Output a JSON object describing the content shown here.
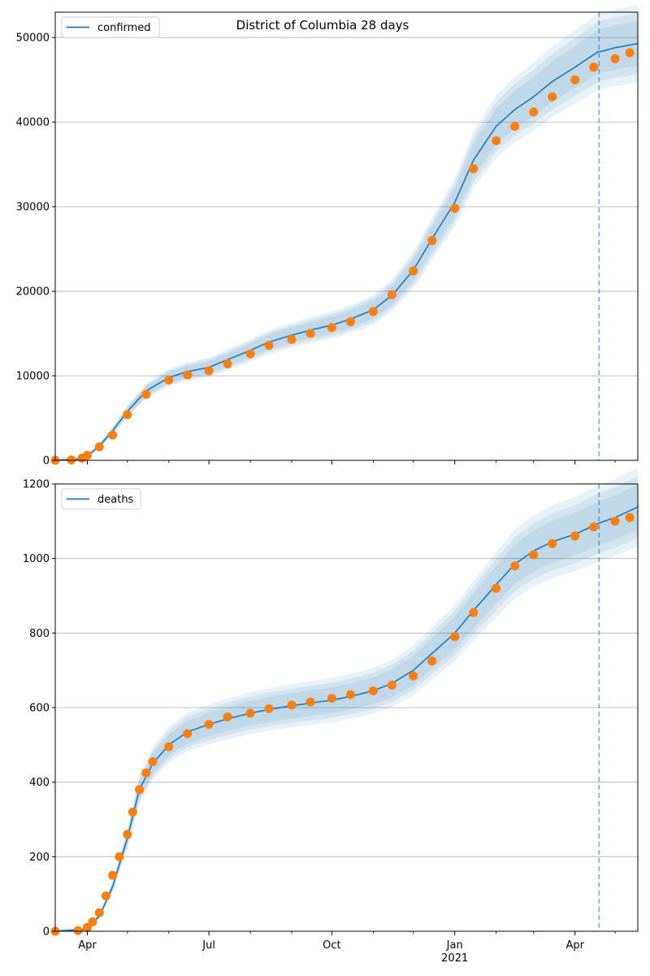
{
  "figure": {
    "title": "District of Columbia 28 days",
    "forecast_start": "2021-04-19"
  },
  "colors": {
    "model": "#1f77b4",
    "observed": "#ff7f0e",
    "band": "#1f77b4",
    "grid": "#b0b0b0",
    "marker_line": "#1f77b4"
  },
  "x_axis": {
    "range": [
      "2020-03-08",
      "2021-05-18"
    ],
    "ticks": [
      {
        "date": "2020-04-01",
        "label": "Apr",
        "sublabel": ""
      },
      {
        "date": "2020-07-01",
        "label": "Jul",
        "sublabel": ""
      },
      {
        "date": "2020-10-01",
        "label": "Oct",
        "sublabel": ""
      },
      {
        "date": "2021-01-01",
        "label": "Jan",
        "sublabel": "2021"
      },
      {
        "date": "2021-04-01",
        "label": "Apr",
        "sublabel": ""
      }
    ]
  },
  "chart_data": [
    {
      "type": "line",
      "legend": "confirmed",
      "legend_position": "top-left",
      "grid": true,
      "ylim": [
        0,
        53000
      ],
      "yticks": [
        0,
        10000,
        20000,
        30000,
        40000,
        50000
      ],
      "series": [
        {
          "name": "confirmed",
          "kind": "model",
          "points": [
            [
              "2020-03-08",
              0
            ],
            [
              "2020-03-25",
              150
            ],
            [
              "2020-04-01",
              500
            ],
            [
              "2020-04-10",
              1700
            ],
            [
              "2020-04-20",
              3500
            ],
            [
              "2020-05-01",
              5800
            ],
            [
              "2020-05-15",
              8200
            ],
            [
              "2020-06-01",
              9800
            ],
            [
              "2020-06-15",
              10500
            ],
            [
              "2020-07-01",
              11000
            ],
            [
              "2020-07-15",
              11900
            ],
            [
              "2020-08-01",
              13000
            ],
            [
              "2020-08-15",
              14000
            ],
            [
              "2020-09-01",
              14800
            ],
            [
              "2020-09-15",
              15400
            ],
            [
              "2020-10-01",
              16000
            ],
            [
              "2020-10-15",
              16700
            ],
            [
              "2020-11-01",
              17800
            ],
            [
              "2020-11-15",
              19500
            ],
            [
              "2020-12-01",
              22500
            ],
            [
              "2020-12-15",
              26200
            ],
            [
              "2021-01-01",
              30500
            ],
            [
              "2021-01-15",
              35500
            ],
            [
              "2021-02-01",
              39500
            ],
            [
              "2021-02-15",
              41500
            ],
            [
              "2021-03-01",
              43000
            ],
            [
              "2021-03-15",
              44800
            ],
            [
              "2021-04-01",
              46500
            ],
            [
              "2021-04-19",
              48400
            ]
          ]
        },
        {
          "name": "",
          "kind": "forecast",
          "points": [
            [
              "2021-04-19",
              48300
            ],
            [
              "2021-05-01",
              48800
            ],
            [
              "2021-05-18",
              49300
            ]
          ]
        },
        {
          "name": "",
          "kind": "observed",
          "points": [
            [
              "2020-03-08",
              0
            ],
            [
              "2020-03-20",
              50
            ],
            [
              "2020-03-28",
              250
            ],
            [
              "2020-04-01",
              600
            ],
            [
              "2020-04-10",
              1600
            ],
            [
              "2020-04-20",
              3000
            ],
            [
              "2020-05-01",
              5400
            ],
            [
              "2020-05-15",
              7800
            ],
            [
              "2020-06-01",
              9500
            ],
            [
              "2020-06-15",
              10100
            ],
            [
              "2020-07-01",
              10600
            ],
            [
              "2020-07-15",
              11400
            ],
            [
              "2020-08-01",
              12600
            ],
            [
              "2020-08-15",
              13600
            ],
            [
              "2020-09-01",
              14300
            ],
            [
              "2020-09-15",
              15000
            ],
            [
              "2020-10-01",
              15700
            ],
            [
              "2020-10-15",
              16400
            ],
            [
              "2020-11-01",
              17600
            ],
            [
              "2020-11-15",
              19600
            ],
            [
              "2020-12-01",
              22400
            ],
            [
              "2020-12-15",
              26000
            ],
            [
              "2021-01-01",
              29800
            ],
            [
              "2021-01-15",
              34500
            ],
            [
              "2021-02-01",
              37800
            ],
            [
              "2021-02-15",
              39500
            ],
            [
              "2021-03-01",
              41200
            ],
            [
              "2021-03-15",
              43000
            ],
            [
              "2021-04-01",
              45000
            ],
            [
              "2021-04-15",
              46500
            ],
            [
              "2021-05-01",
              47500
            ],
            [
              "2021-05-12",
              48200
            ]
          ]
        }
      ]
    },
    {
      "type": "line",
      "legend": "deaths",
      "legend_position": "top-left",
      "grid": true,
      "ylim": [
        0,
        1200
      ],
      "yticks": [
        0,
        200,
        400,
        600,
        800,
        1000,
        1200
      ],
      "series": [
        {
          "name": "deaths",
          "kind": "model",
          "points": [
            [
              "2020-03-08",
              0
            ],
            [
              "2020-03-30",
              5
            ],
            [
              "2020-04-10",
              40
            ],
            [
              "2020-04-20",
              120
            ],
            [
              "2020-05-01",
              250
            ],
            [
              "2020-05-10",
              380
            ],
            [
              "2020-05-20",
              450
            ],
            [
              "2020-06-01",
              500
            ],
            [
              "2020-06-15",
              535
            ],
            [
              "2020-07-01",
              555
            ],
            [
              "2020-07-15",
              570
            ],
            [
              "2020-08-01",
              585
            ],
            [
              "2020-08-15",
              595
            ],
            [
              "2020-09-01",
              605
            ],
            [
              "2020-09-15",
              612
            ],
            [
              "2020-10-01",
              620
            ],
            [
              "2020-10-15",
              630
            ],
            [
              "2020-11-01",
              645
            ],
            [
              "2020-11-15",
              665
            ],
            [
              "2020-12-01",
              700
            ],
            [
              "2020-12-15",
              745
            ],
            [
              "2021-01-01",
              800
            ],
            [
              "2021-01-15",
              860
            ],
            [
              "2021-02-01",
              930
            ],
            [
              "2021-02-15",
              985
            ],
            [
              "2021-03-01",
              1020
            ],
            [
              "2021-03-15",
              1045
            ],
            [
              "2021-04-01",
              1065
            ],
            [
              "2021-04-19",
              1095
            ]
          ]
        },
        {
          "name": "",
          "kind": "forecast",
          "points": [
            [
              "2021-04-19",
              1095
            ],
            [
              "2021-05-01",
              1110
            ],
            [
              "2021-05-18",
              1138
            ]
          ]
        },
        {
          "name": "",
          "kind": "observed",
          "points": [
            [
              "2020-03-08",
              0
            ],
            [
              "2020-03-25",
              2
            ],
            [
              "2020-04-01",
              10
            ],
            [
              "2020-04-05",
              25
            ],
            [
              "2020-04-10",
              50
            ],
            [
              "2020-04-15",
              95
            ],
            [
              "2020-04-20",
              150
            ],
            [
              "2020-04-25",
              200
            ],
            [
              "2020-05-01",
              260
            ],
            [
              "2020-05-05",
              320
            ],
            [
              "2020-05-10",
              380
            ],
            [
              "2020-05-15",
              425
            ],
            [
              "2020-05-20",
              455
            ],
            [
              "2020-06-01",
              495
            ],
            [
              "2020-06-15",
              530
            ],
            [
              "2020-07-01",
              555
            ],
            [
              "2020-07-15",
              575
            ],
            [
              "2020-08-01",
              585
            ],
            [
              "2020-08-15",
              597
            ],
            [
              "2020-09-01",
              607
            ],
            [
              "2020-09-15",
              615
            ],
            [
              "2020-10-01",
              625
            ],
            [
              "2020-10-15",
              635
            ],
            [
              "2020-11-01",
              645
            ],
            [
              "2020-11-15",
              660
            ],
            [
              "2020-12-01",
              685
            ],
            [
              "2020-12-15",
              725
            ],
            [
              "2021-01-01",
              790
            ],
            [
              "2021-01-15",
              855
            ],
            [
              "2021-02-01",
              920
            ],
            [
              "2021-02-15",
              980
            ],
            [
              "2021-03-01",
              1010
            ],
            [
              "2021-03-15",
              1040
            ],
            [
              "2021-04-01",
              1060
            ],
            [
              "2021-04-15",
              1085
            ],
            [
              "2021-05-01",
              1100
            ],
            [
              "2021-05-12",
              1110
            ]
          ]
        }
      ]
    }
  ]
}
